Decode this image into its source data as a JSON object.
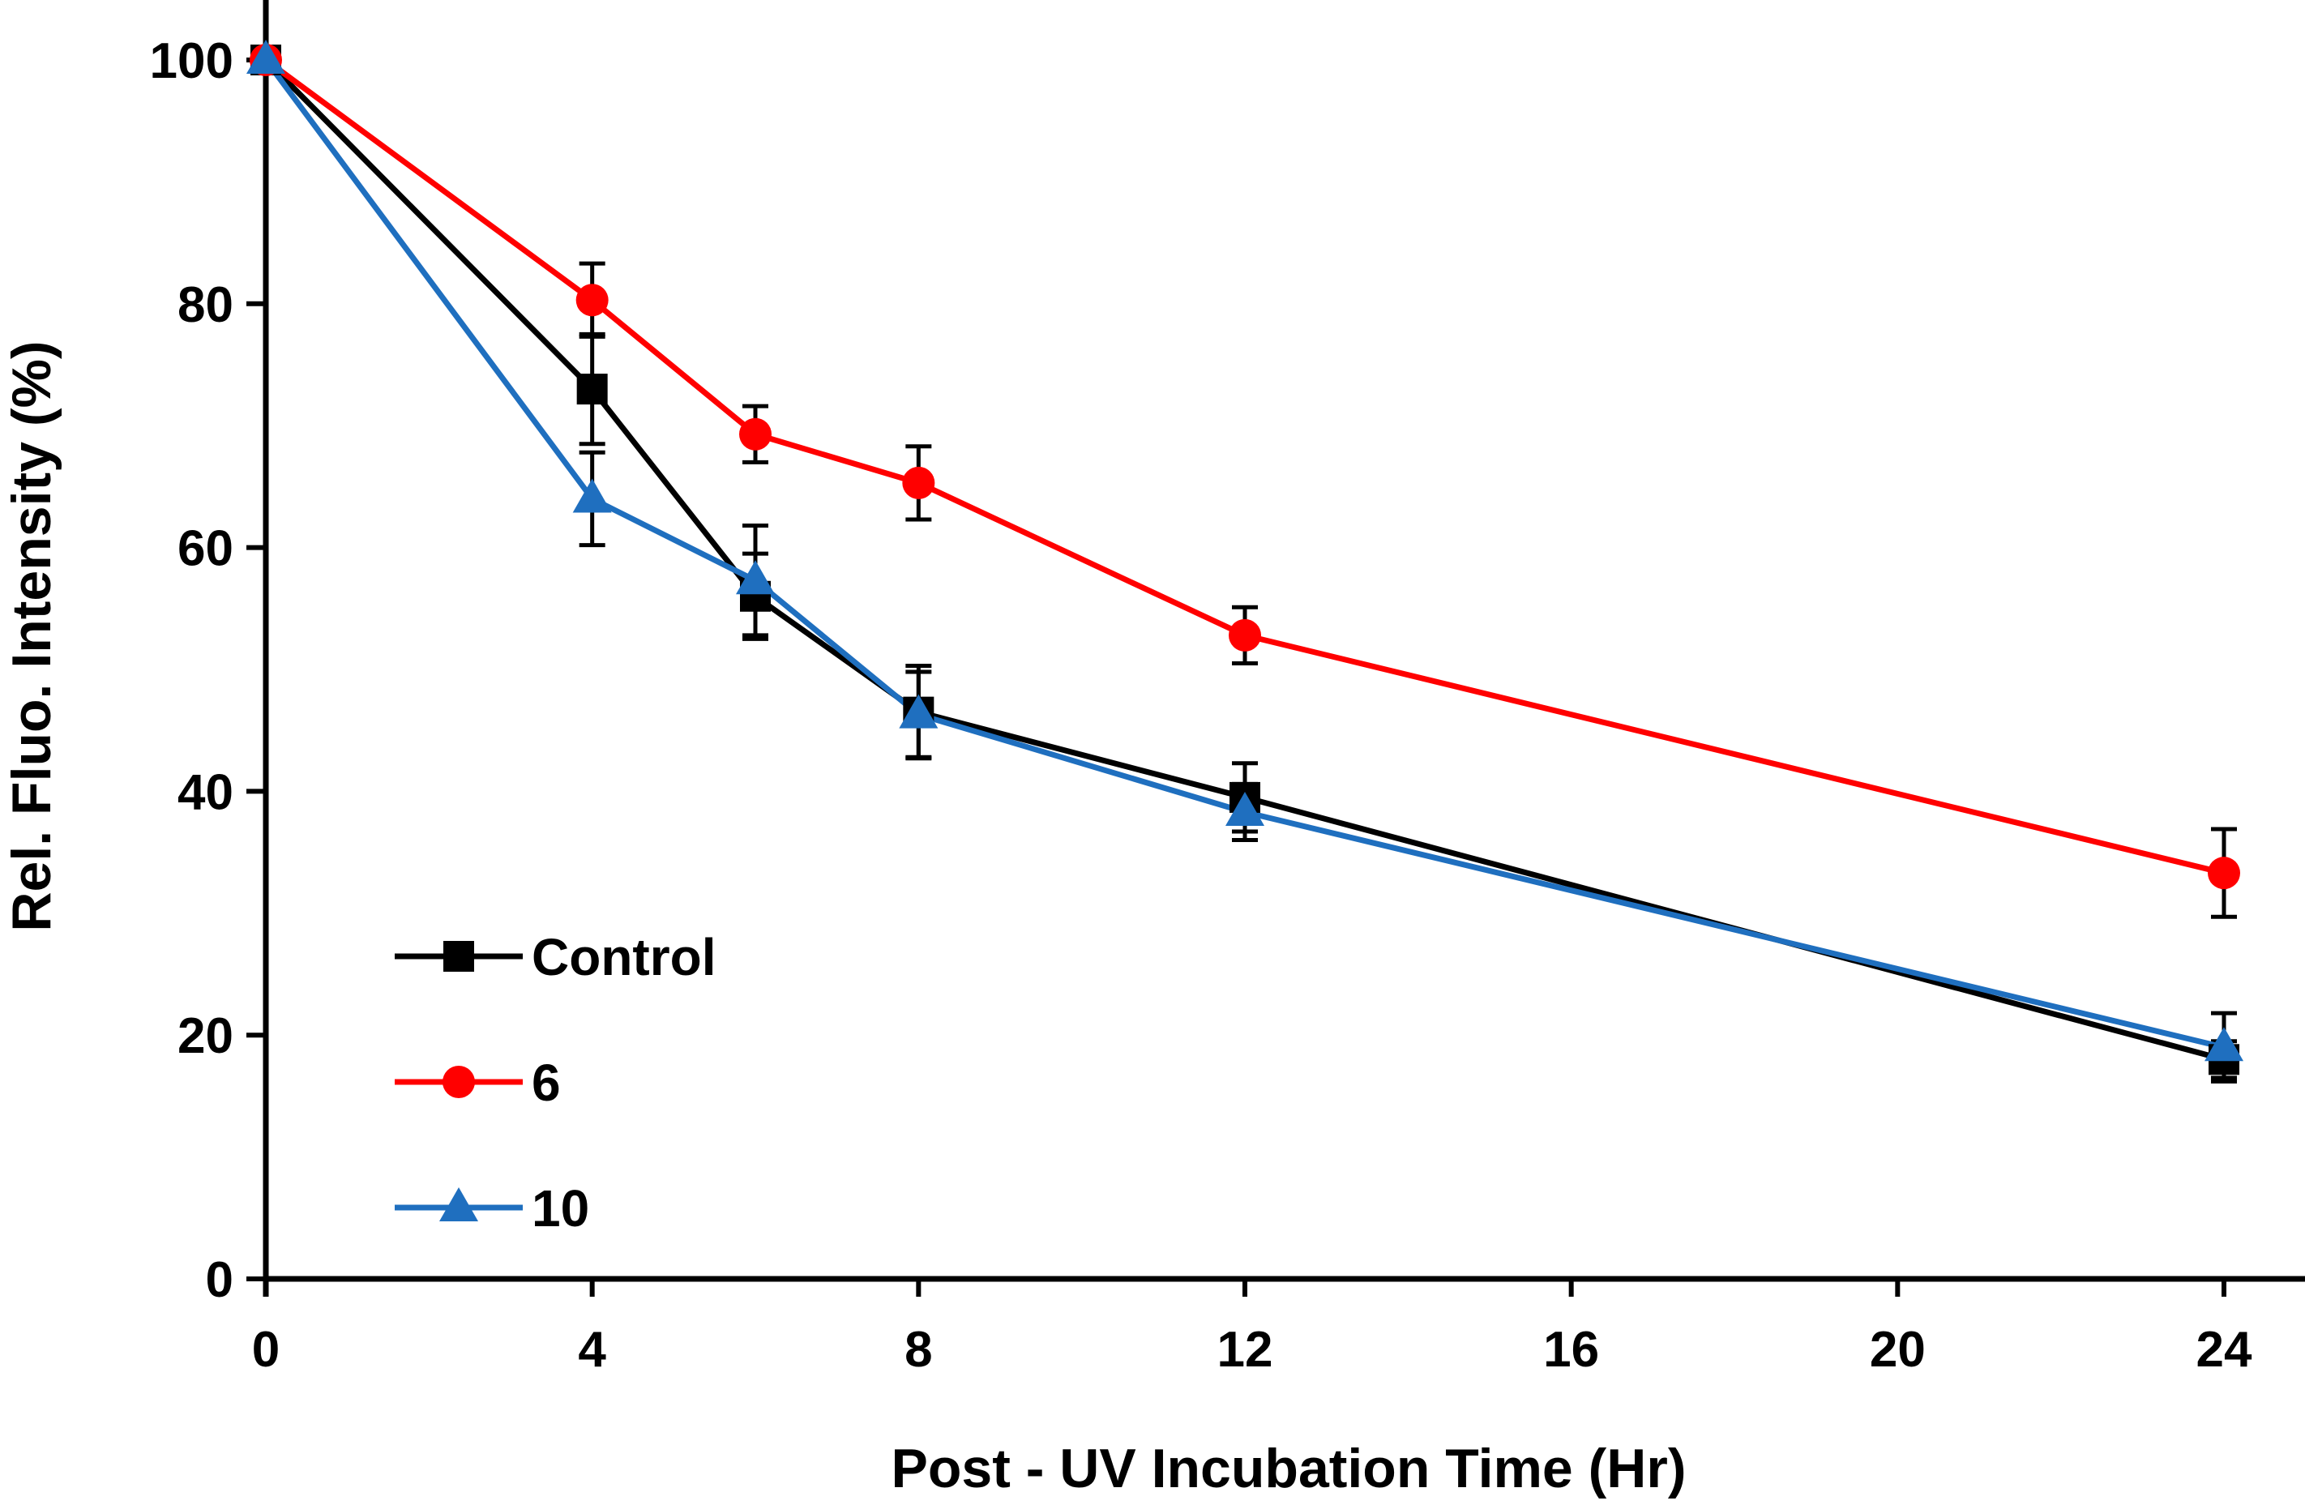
{
  "chart_data": {
    "type": "line",
    "title": "",
    "xlabel": "Post - UV Incubation Time (Hr)",
    "ylabel": "Rel. Fluo. Intensity (%)",
    "xlim": [
      0,
      24
    ],
    "ylim": [
      0,
      100
    ],
    "xticks": [
      0,
      4,
      8,
      12,
      16,
      20,
      24
    ],
    "yticks": [
      0,
      20,
      40,
      60,
      80,
      100
    ],
    "grid": false,
    "legend_position": "bottom-left",
    "x": [
      0,
      4,
      6,
      8,
      12,
      24
    ],
    "series": [
      {
        "name": "Control",
        "color": "#000000",
        "marker": "square",
        "values": [
          100,
          73,
          56,
          46.5,
          39.5,
          18
        ],
        "errors": [
          0,
          4.5,
          3.5,
          3.8,
          2.8,
          1.5
        ]
      },
      {
        "name": "6",
        "color": "#ff0000",
        "marker": "circle",
        "values": [
          100,
          80.3,
          69.3,
          65.3,
          52.8,
          33.3
        ],
        "errors": [
          0,
          3,
          2.3,
          3,
          2.3,
          3.6
        ]
      },
      {
        "name": "10",
        "color": "#1f6fbf",
        "marker": "triangle",
        "values": [
          100,
          64,
          57.3,
          46.3,
          38.3,
          19
        ],
        "errors": [
          0,
          3.8,
          4.5,
          3.5,
          2.3,
          2.8
        ]
      }
    ]
  }
}
